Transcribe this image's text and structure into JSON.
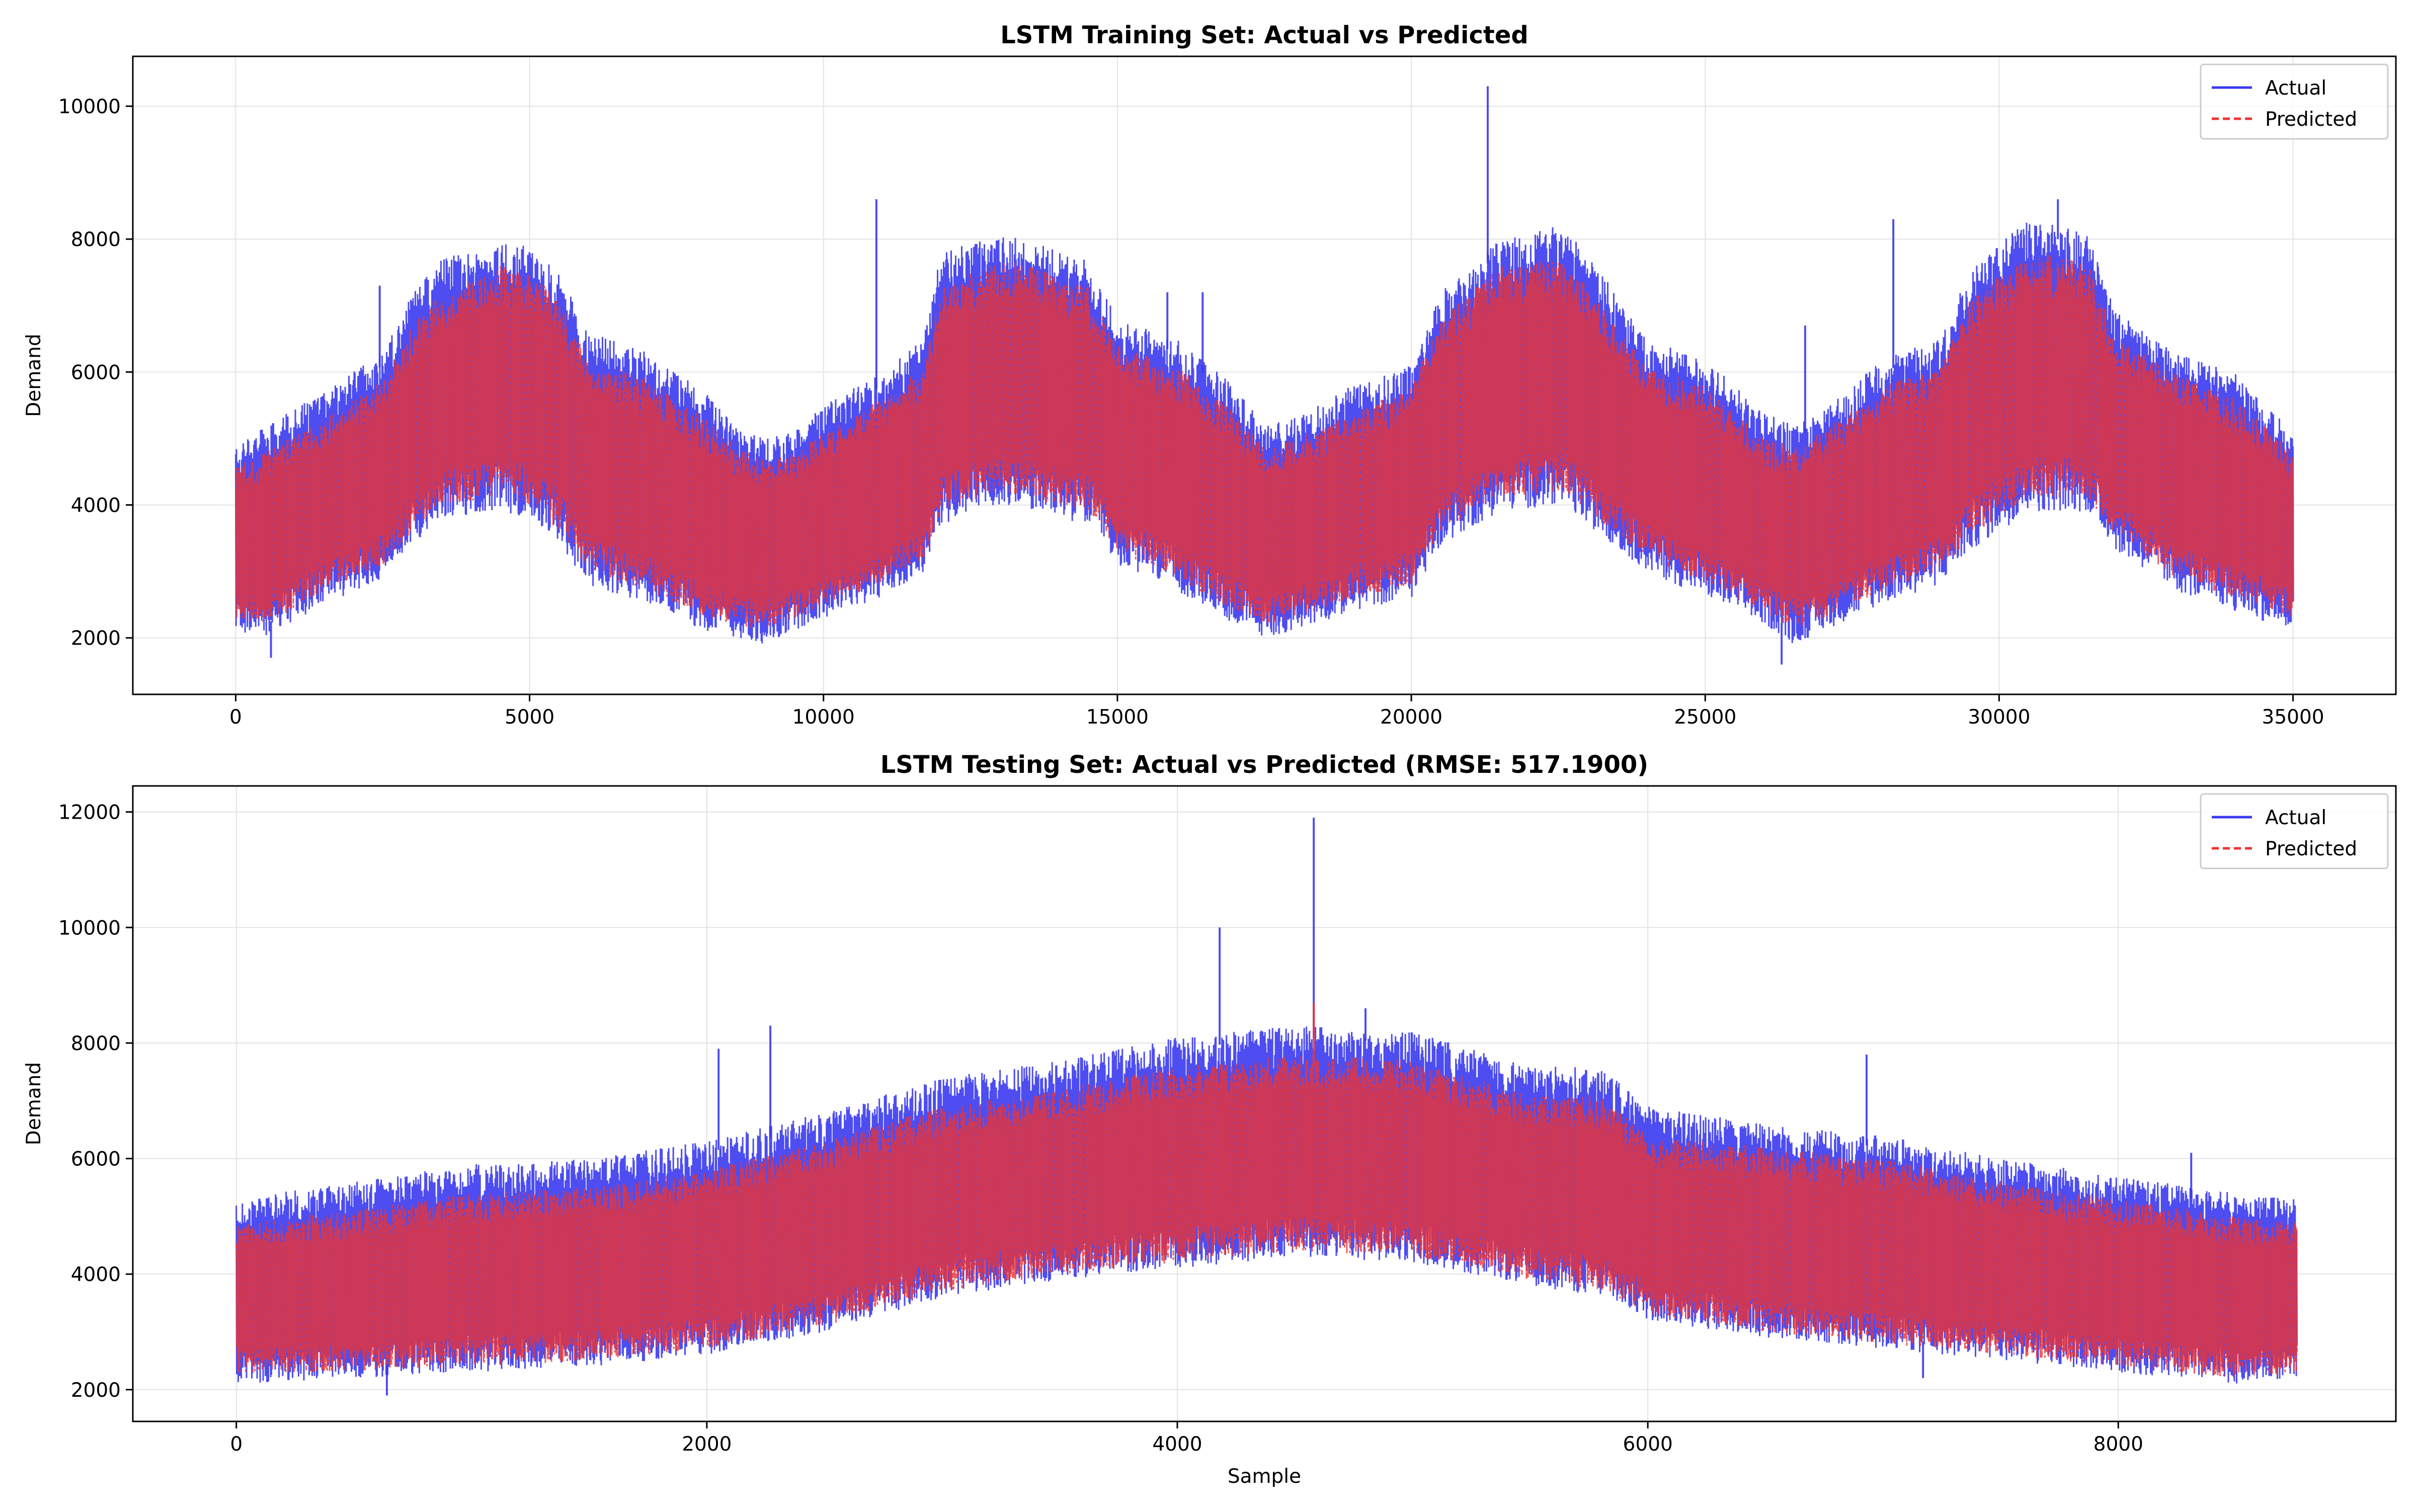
{
  "chart_data": [
    {
      "type": "line",
      "title": "LSTM Training Set: Actual vs Predicted",
      "xlabel": "",
      "ylabel": "Demand",
      "xlim": [
        -1750,
        36750
      ],
      "ylim": [
        1150,
        10750
      ],
      "x_ticks": [
        0,
        5000,
        10000,
        15000,
        20000,
        25000,
        30000,
        35000
      ],
      "x_tick_labels": [
        "0",
        "5000",
        "10000",
        "15000",
        "20000",
        "25000",
        "30000",
        "35000"
      ],
      "y_ticks": [
        2000,
        4000,
        6000,
        8000,
        10000
      ],
      "y_tick_labels": [
        "2000",
        "4000",
        "6000",
        "8000",
        "10000"
      ],
      "grid": true,
      "legend_position": "top-right",
      "x_extent": [
        0,
        35000
      ],
      "series": [
        {
          "name": "Actual",
          "color": "#3a3af0",
          "style": "solid",
          "envelope": {
            "x": [
              0,
              500,
              1500,
              2500,
              3000,
              3500,
              4500,
              5000,
              5500,
              6000,
              7000,
              8000,
              8500,
              9000,
              9500,
              10000,
              11000,
              11700,
              12000,
              13000,
              13500,
              14500,
              15000,
              16000,
              17000,
              17500,
              18000,
              19000,
              20000,
              20500,
              21500,
              22500,
              23000,
              24000,
              25000,
              26000,
              26500,
              27000,
              28000,
              29000,
              29500,
              30500,
              31500,
              32000,
              33000,
              34000,
              35000
            ],
            "upper": [
              4900,
              5200,
              5700,
              6300,
              7200,
              7700,
              8000,
              7900,
              7500,
              6600,
              6300,
              5700,
              5200,
              5000,
              5100,
              5500,
              6000,
              6500,
              7800,
              8100,
              8000,
              7700,
              6800,
              6500,
              5800,
              5200,
              5300,
              5800,
              6100,
              7200,
              8000,
              8200,
              7800,
              6500,
              6200,
              5400,
              5200,
              5400,
              6200,
              6500,
              7600,
              8300,
              8100,
              6900,
              6300,
              6000,
              5100
            ],
            "lower": [
              2100,
              2000,
              2500,
              2900,
              3400,
              3800,
              3900,
              3800,
              3400,
              2800,
              2500,
              2100,
              2000,
              1900,
              2100,
              2300,
              2600,
              3000,
              3700,
              4000,
              3900,
              3700,
              3100,
              2700,
              2200,
              2000,
              2100,
              2400,
              2600,
              3400,
              3900,
              4000,
              3700,
              3000,
              2600,
              2200,
              1900,
              2100,
              2500,
              2800,
              3300,
              3900,
              3900,
              3300,
              2700,
              2400,
              2100
            ]
          },
          "spikes": [
            {
              "x": 2450,
              "y": 7300
            },
            {
              "x": 10900,
              "y": 8600
            },
            {
              "x": 15850,
              "y": 7200
            },
            {
              "x": 16450,
              "y": 7200
            },
            {
              "x": 21300,
              "y": 10300
            },
            {
              "x": 26700,
              "y": 6700
            },
            {
              "x": 28200,
              "y": 8300
            },
            {
              "x": 31000,
              "y": 8600
            },
            {
              "x": 26300,
              "y": 1600
            },
            {
              "x": 600,
              "y": 1700
            }
          ]
        },
        {
          "name": "Predicted",
          "color": "#ee3333",
          "style": "dashed",
          "envelope": {
            "x": [
              0,
              500,
              1500,
              2500,
              3000,
              3500,
              4500,
              5000,
              5500,
              6000,
              7000,
              8000,
              8500,
              9000,
              9500,
              10000,
              11000,
              11700,
              12000,
              13000,
              13500,
              14500,
              15000,
              16000,
              17000,
              17500,
              18000,
              19000,
              20000,
              20500,
              21500,
              22500,
              23000,
              24000,
              25000,
              26000,
              26500,
              27000,
              28000,
              29000,
              29500,
              30500,
              31500,
              32000,
              33000,
              34000,
              35000
            ],
            "upper": [
              4600,
              4800,
              5300,
              5900,
              6700,
              7200,
              7600,
              7500,
              7100,
              6200,
              5900,
              5300,
              4900,
              4700,
              4800,
              5100,
              5600,
              6100,
              7300,
              7700,
              7600,
              7300,
              6400,
              6100,
              5400,
              4900,
              5000,
              5400,
              5800,
              6800,
              7600,
              7700,
              7300,
              6100,
              5800,
              5000,
              4900,
              5100,
              5800,
              6100,
              7100,
              7800,
              7700,
              6500,
              6000,
              5600,
              4800
            ],
            "lower": [
              2300,
              2200,
              2700,
              3100,
              3600,
              4000,
              4100,
              4000,
              3600,
              3000,
              2700,
              2300,
              2200,
              2100,
              2300,
              2500,
              2800,
              3200,
              3900,
              4200,
              4100,
              3900,
              3300,
              2900,
              2400,
              2200,
              2300,
              2600,
              2800,
              3600,
              4100,
              4200,
              3900,
              3200,
              2800,
              2400,
              2100,
              2300,
              2700,
              3000,
              3500,
              4100,
              4100,
              3500,
              2900,
              2600,
              2300
            ]
          },
          "spikes": []
        }
      ]
    },
    {
      "type": "line",
      "title": "LSTM Testing Set: Actual vs Predicted (RMSE: 517.1900)",
      "xlabel": "Sample",
      "ylabel": "Demand",
      "xlim": [
        -440,
        9180
      ],
      "ylim": [
        1450,
        12450
      ],
      "x_ticks": [
        0,
        2000,
        4000,
        6000,
        8000
      ],
      "x_tick_labels": [
        "0",
        "2000",
        "4000",
        "6000",
        "8000"
      ],
      "y_ticks": [
        2000,
        4000,
        6000,
        8000,
        10000,
        12000
      ],
      "y_tick_labels": [
        "2000",
        "4000",
        "6000",
        "8000",
        "10000",
        "12000"
      ],
      "grid": true,
      "legend_position": "top-right",
      "x_extent": [
        0,
        8760
      ],
      "series": [
        {
          "name": "Actual",
          "color": "#3a3af0",
          "style": "solid",
          "envelope": {
            "x": [
              0,
              500,
              1000,
              1500,
              2000,
              2500,
              3000,
              3500,
              4000,
              4500,
              5000,
              5500,
              5800,
              6000,
              6500,
              7000,
              7500,
              8000,
              8500,
              8760
            ],
            "upper": [
              5300,
              5600,
              5900,
              6000,
              6300,
              6800,
              7400,
              7700,
              8100,
              8300,
              8200,
              7600,
              7600,
              6900,
              6600,
              6400,
              6000,
              5700,
              5400,
              5300
            ],
            "lower": [
              2100,
              2200,
              2300,
              2400,
              2600,
              3000,
              3600,
              3900,
              4100,
              4300,
              4200,
              3800,
              3600,
              3200,
              2900,
              2700,
              2500,
              2300,
              2100,
              2200
            ]
          },
          "spikes": [
            {
              "x": 2050,
              "y": 7900
            },
            {
              "x": 2270,
              "y": 8300
            },
            {
              "x": 4180,
              "y": 10000
            },
            {
              "x": 4580,
              "y": 11900
            },
            {
              "x": 4800,
              "y": 8600
            },
            {
              "x": 6930,
              "y": 7800
            },
            {
              "x": 8310,
              "y": 6100
            },
            {
              "x": 640,
              "y": 1900
            },
            {
              "x": 7170,
              "y": 2200
            }
          ]
        },
        {
          "name": "Predicted",
          "color": "#ee3333",
          "style": "dashed",
          "envelope": {
            "x": [
              0,
              500,
              1000,
              1500,
              2000,
              2500,
              3000,
              3500,
              4000,
              4500,
              5000,
              5500,
              5800,
              6000,
              6500,
              7000,
              7500,
              8000,
              8500,
              8760
            ],
            "upper": [
              4900,
              5100,
              5400,
              5500,
              5800,
              6300,
              6900,
              7200,
              7600,
              7800,
              7700,
              7100,
              7100,
              6400,
              6200,
              6000,
              5600,
              5300,
              5000,
              4900
            ],
            "lower": [
              2300,
              2300,
              2400,
              2500,
              2700,
              3100,
              3700,
              4000,
              4200,
              4400,
              4300,
              3900,
              3700,
              3300,
              3000,
              2800,
              2600,
              2400,
              2200,
              2300
            ]
          },
          "spikes": [
            {
              "x": 4580,
              "y": 8700
            }
          ]
        }
      ]
    }
  ]
}
